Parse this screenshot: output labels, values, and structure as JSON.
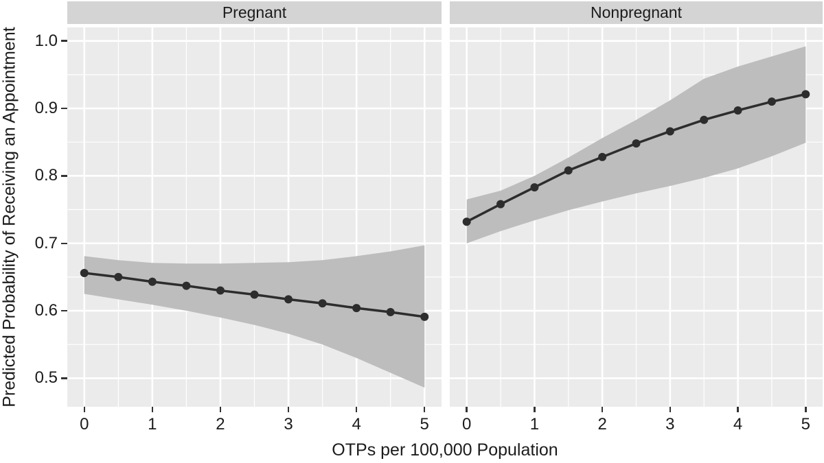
{
  "chart_data": {
    "type": "line",
    "title": "",
    "xlabel": "OTPs per 100,000 Population",
    "ylabel": "Predicted Probability of Receiving an Appointment",
    "facet_variable_values": [
      "Pregnant",
      "Nonpregnant"
    ],
    "x": [
      0,
      0.5,
      1,
      1.5,
      2,
      2.5,
      3,
      3.5,
      4,
      4.5,
      5
    ],
    "xticks": [
      0,
      1,
      2,
      3,
      4,
      5
    ],
    "xtick_labels": [
      "0",
      "1",
      "2",
      "3",
      "4",
      "5"
    ],
    "yticks": [
      1.0,
      0.9,
      0.8,
      0.7,
      0.6,
      0.5
    ],
    "ytick_labels": [
      "1.0",
      "0.9",
      "0.8",
      "0.7",
      "0.6",
      "0.5"
    ],
    "xlim": [
      -0.25,
      5.25
    ],
    "ylim": [
      0.4577,
      1.02
    ],
    "grid": {
      "major": true,
      "minor": true,
      "color": "#ffffff"
    },
    "legend": "none",
    "facets": [
      {
        "label": "Pregnant",
        "series": {
          "name": "predicted-probability-with-95ci",
          "y": [
            0.656,
            0.65,
            0.643,
            0.637,
            0.63,
            0.624,
            0.617,
            0.611,
            0.604,
            0.598,
            0.591
          ],
          "ci_lower": [
            0.625,
            0.617,
            0.609,
            0.6,
            0.59,
            0.579,
            0.566,
            0.55,
            0.53,
            0.508,
            0.486
          ],
          "ci_upper": [
            0.681,
            0.675,
            0.671,
            0.67,
            0.67,
            0.671,
            0.672,
            0.675,
            0.681,
            0.688,
            0.697
          ]
        }
      },
      {
        "label": "Nonpregnant",
        "series": {
          "name": "predicted-probability-with-95ci",
          "y": [
            0.732,
            0.758,
            0.783,
            0.808,
            0.828,
            0.848,
            0.866,
            0.883,
            0.897,
            0.91,
            0.921
          ],
          "ci_lower": [
            0.7,
            0.718,
            0.734,
            0.749,
            0.762,
            0.774,
            0.785,
            0.797,
            0.811,
            0.829,
            0.849
          ],
          "ci_upper": [
            0.765,
            0.778,
            0.8,
            0.827,
            0.856,
            0.883,
            0.912,
            0.944,
            0.962,
            0.977,
            0.992
          ]
        }
      }
    ],
    "colors": {
      "panel_bg": "#ebebeb",
      "strip_bg": "#d4d4d4",
      "grid": "#ffffff",
      "ribbon": "#bdbdbd",
      "line": "#2d2d2d",
      "point": "#2d2d2d",
      "text": "#1c1c1c",
      "tick_mark": "#333333"
    },
    "style": {
      "marker": "circle",
      "point_radius": 6,
      "line_width": 3.5,
      "ribbon_meaning": "confidence band"
    }
  }
}
